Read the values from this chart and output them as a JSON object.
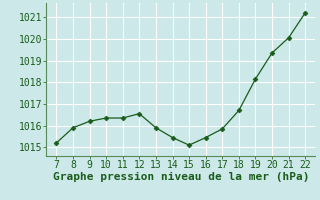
{
  "x": [
    7,
    8,
    9,
    10,
    11,
    12,
    13,
    14,
    15,
    16,
    17,
    18,
    19,
    20,
    21,
    22
  ],
  "y": [
    1015.2,
    1015.9,
    1016.2,
    1016.35,
    1016.35,
    1016.55,
    1015.9,
    1015.45,
    1015.1,
    1015.45,
    1015.85,
    1016.7,
    1018.15,
    1019.35,
    1020.05,
    1021.2
  ],
  "line_color": "#1a5c1a",
  "marker": "D",
  "marker_size": 2.5,
  "bg_color": "#cce8e8",
  "grid_color": "#ffffff",
  "xlabel": "Graphe pression niveau de la mer (hPa)",
  "xlabel_fontsize": 8,
  "xlabel_color": "#1a5c1a",
  "ytick_labels": [
    1015,
    1016,
    1017,
    1018,
    1019,
    1020,
    1021
  ],
  "xtick_labels": [
    7,
    8,
    9,
    10,
    11,
    12,
    13,
    14,
    15,
    16,
    17,
    18,
    19,
    20,
    21,
    22
  ],
  "ylim": [
    1014.6,
    1021.65
  ],
  "xlim": [
    6.4,
    22.6
  ],
  "tick_color": "#1a5c1a",
  "tick_fontsize": 7,
  "spine_color": "#5a8a5a"
}
